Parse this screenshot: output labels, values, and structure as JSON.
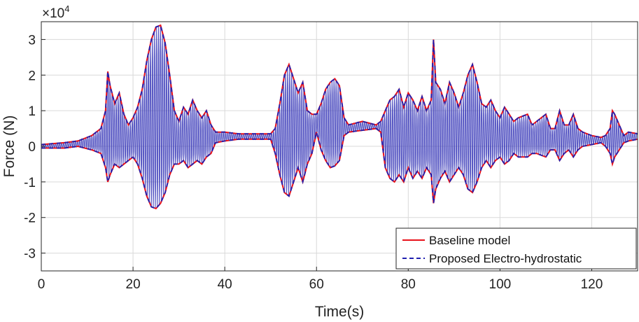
{
  "chart_data": {
    "type": "line",
    "title": "",
    "xlabel": "Time(s)",
    "ylabel": "Force (N)",
    "y_exponent_label": "×10",
    "y_exponent_power": "4",
    "xlim": [
      0,
      130
    ],
    "ylim": [
      -3.5,
      3.5
    ],
    "y_scale_factor": 10000,
    "xticks": [
      0,
      20,
      40,
      60,
      80,
      100,
      120
    ],
    "xtick_labels": [
      "0",
      "20",
      "40",
      "60",
      "80",
      "100",
      "120"
    ],
    "yticks": [
      -3,
      -2,
      -1,
      0,
      1,
      2,
      3
    ],
    "ytick_labels": [
      "-3",
      "-2",
      "-1",
      "0",
      "1",
      "2",
      "3"
    ],
    "grid": true,
    "legend_position": "bottom-right",
    "series": [
      {
        "name": "Baseline model",
        "color": "#e8121b",
        "style": "solid",
        "upper": [
          [
            0,
            0.05
          ],
          [
            5,
            0.1
          ],
          [
            8,
            0.15
          ],
          [
            11,
            0.3
          ],
          [
            13,
            0.5
          ],
          [
            14,
            1.0
          ],
          [
            14.5,
            2.1
          ],
          [
            15,
            1.7
          ],
          [
            16,
            1.2
          ],
          [
            17,
            1.5
          ],
          [
            18,
            0.9
          ],
          [
            19,
            0.6
          ],
          [
            20,
            0.8
          ],
          [
            21,
            1.1
          ],
          [
            22,
            1.6
          ],
          [
            23,
            2.4
          ],
          [
            24,
            3.0
          ],
          [
            25,
            3.35
          ],
          [
            26,
            3.4
          ],
          [
            27,
            2.9
          ],
          [
            28,
            2.0
          ],
          [
            29,
            1.0
          ],
          [
            30,
            0.7
          ],
          [
            31,
            1.1
          ],
          [
            32,
            0.9
          ],
          [
            33,
            1.3
          ],
          [
            34,
            1.0
          ],
          [
            35,
            0.8
          ],
          [
            36,
            1.0
          ],
          [
            37,
            0.6
          ],
          [
            38,
            0.4
          ],
          [
            40,
            0.4
          ],
          [
            43,
            0.35
          ],
          [
            46,
            0.35
          ],
          [
            50,
            0.35
          ],
          [
            51,
            0.5
          ],
          [
            52,
            1.2
          ],
          [
            53,
            2.0
          ],
          [
            54,
            2.3
          ],
          [
            55,
            1.9
          ],
          [
            56,
            1.5
          ],
          [
            57,
            1.8
          ],
          [
            58,
            1.0
          ],
          [
            59,
            0.9
          ],
          [
            60,
            0.9
          ],
          [
            61,
            1.2
          ],
          [
            62,
            1.6
          ],
          [
            63,
            1.8
          ],
          [
            64,
            1.9
          ],
          [
            65,
            1.7
          ],
          [
            66,
            0.8
          ],
          [
            67,
            0.6
          ],
          [
            70,
            0.7
          ],
          [
            73,
            0.6
          ],
          [
            74,
            0.7
          ],
          [
            75,
            1.0
          ],
          [
            76,
            1.3
          ],
          [
            77,
            1.4
          ],
          [
            78,
            1.6
          ],
          [
            79,
            1.1
          ],
          [
            80,
            1.5
          ],
          [
            81,
            1.3
          ],
          [
            82,
            1.0
          ],
          [
            83,
            1.4
          ],
          [
            84,
            1.0
          ],
          [
            85,
            1.3
          ],
          [
            85.5,
            3.0
          ],
          [
            86,
            1.8
          ],
          [
            87,
            1.6
          ],
          [
            88,
            1.2
          ],
          [
            89,
            1.8
          ],
          [
            90,
            1.5
          ],
          [
            91,
            1.1
          ],
          [
            92,
            1.5
          ],
          [
            93,
            2.0
          ],
          [
            94,
            2.3
          ],
          [
            95,
            1.8
          ],
          [
            96,
            1.2
          ],
          [
            97,
            1.1
          ],
          [
            98,
            1.3
          ],
          [
            99,
            1.0
          ],
          [
            100,
            0.8
          ],
          [
            101,
            1.1
          ],
          [
            102,
            0.9
          ],
          [
            103,
            0.7
          ],
          [
            104,
            0.8
          ],
          [
            106,
            0.9
          ],
          [
            107,
            0.6
          ],
          [
            108,
            0.7
          ],
          [
            110,
            0.9
          ],
          [
            111,
            0.5
          ],
          [
            112,
            0.5
          ],
          [
            113,
            1.0
          ],
          [
            114,
            0.6
          ],
          [
            115,
            0.6
          ],
          [
            116,
            0.9
          ],
          [
            117,
            0.5
          ],
          [
            118,
            0.4
          ],
          [
            120,
            0.3
          ],
          [
            122,
            0.25
          ],
          [
            123,
            0.3
          ],
          [
            124,
            0.5
          ],
          [
            124.5,
            1.0
          ],
          [
            125,
            0.9
          ],
          [
            126,
            0.6
          ],
          [
            127,
            0.3
          ],
          [
            128,
            0.4
          ],
          [
            130,
            0.35
          ]
        ],
        "lower": [
          [
            0,
            -0.05
          ],
          [
            5,
            -0.05
          ],
          [
            8,
            0.0
          ],
          [
            11,
            -0.1
          ],
          [
            13,
            -0.2
          ],
          [
            14,
            -0.6
          ],
          [
            14.5,
            -1.0
          ],
          [
            15,
            -0.8
          ],
          [
            16,
            -0.5
          ],
          [
            17,
            -0.6
          ],
          [
            18,
            -0.5
          ],
          [
            19,
            -0.4
          ],
          [
            20,
            -0.3
          ],
          [
            21,
            -0.5
          ],
          [
            22,
            -0.9
          ],
          [
            23,
            -1.4
          ],
          [
            24,
            -1.7
          ],
          [
            25,
            -1.75
          ],
          [
            26,
            -1.6
          ],
          [
            27,
            -1.3
          ],
          [
            28,
            -0.8
          ],
          [
            29,
            -0.5
          ],
          [
            30,
            -0.5
          ],
          [
            31,
            -0.4
          ],
          [
            32,
            -0.6
          ],
          [
            33,
            -0.5
          ],
          [
            34,
            -0.4
          ],
          [
            35,
            -0.5
          ],
          [
            36,
            -0.3
          ],
          [
            37,
            -0.2
          ],
          [
            38,
            0.1
          ],
          [
            40,
            0.15
          ],
          [
            43,
            0.2
          ],
          [
            46,
            0.2
          ],
          [
            50,
            0.2
          ],
          [
            51,
            -0.2
          ],
          [
            52,
            -0.8
          ],
          [
            53,
            -1.3
          ],
          [
            54,
            -1.4
          ],
          [
            55,
            -1.0
          ],
          [
            56,
            -0.6
          ],
          [
            57,
            -1.0
          ],
          [
            58,
            -0.5
          ],
          [
            59,
            -0.2
          ],
          [
            60,
            0.4
          ],
          [
            61,
            -0.1
          ],
          [
            62,
            -0.4
          ],
          [
            63,
            -0.6
          ],
          [
            64,
            -0.55
          ],
          [
            65,
            -0.4
          ],
          [
            66,
            0.3
          ],
          [
            67,
            0.4
          ],
          [
            70,
            0.45
          ],
          [
            73,
            0.5
          ],
          [
            74,
            0.4
          ],
          [
            75,
            -0.6
          ],
          [
            76,
            -0.9
          ],
          [
            77,
            -1.0
          ],
          [
            78,
            -0.8
          ],
          [
            79,
            -1.0
          ],
          [
            80,
            -0.6
          ],
          [
            81,
            -0.9
          ],
          [
            82,
            -0.7
          ],
          [
            83,
            -0.9
          ],
          [
            84,
            -0.6
          ],
          [
            85,
            -0.8
          ],
          [
            85.5,
            -1.6
          ],
          [
            86,
            -1.2
          ],
          [
            87,
            -0.9
          ],
          [
            88,
            -0.7
          ],
          [
            89,
            -1.0
          ],
          [
            90,
            -0.8
          ],
          [
            91,
            -0.6
          ],
          [
            92,
            -0.8
          ],
          [
            93,
            -1.2
          ],
          [
            94,
            -1.3
          ],
          [
            95,
            -1.0
          ],
          [
            96,
            -0.6
          ],
          [
            97,
            -0.4
          ],
          [
            98,
            -0.6
          ],
          [
            99,
            -0.4
          ],
          [
            100,
            -0.3
          ],
          [
            101,
            -0.5
          ],
          [
            102,
            -0.4
          ],
          [
            103,
            -0.2
          ],
          [
            104,
            -0.3
          ],
          [
            106,
            -0.3
          ],
          [
            107,
            -0.2
          ],
          [
            108,
            -0.2
          ],
          [
            110,
            -0.3
          ],
          [
            111,
            -0.1
          ],
          [
            112,
            -0.1
          ],
          [
            113,
            -0.4
          ],
          [
            114,
            -0.2
          ],
          [
            115,
            -0.1
          ],
          [
            116,
            -0.3
          ],
          [
            117,
            -0.1
          ],
          [
            118,
            0.0
          ],
          [
            120,
            0.05
          ],
          [
            122,
            0.1
          ],
          [
            123,
            0.0
          ],
          [
            124,
            -0.2
          ],
          [
            124.5,
            -0.5
          ],
          [
            125,
            -0.3
          ],
          [
            126,
            -0.1
          ],
          [
            127,
            0.1
          ],
          [
            128,
            0.15
          ],
          [
            130,
            0.2
          ]
        ]
      },
      {
        "name": "Proposed Electro-hydrostatic",
        "color": "#2020b0",
        "style": "dashed"
      }
    ]
  }
}
